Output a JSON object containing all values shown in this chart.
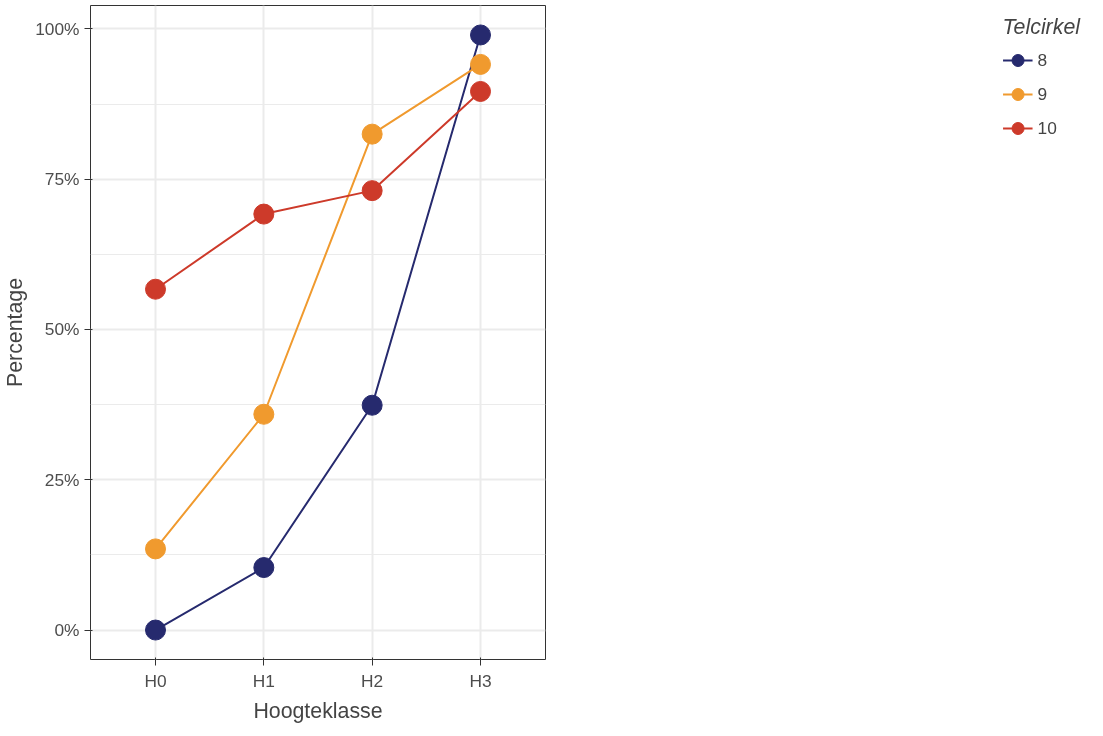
{
  "chart_data": {
    "type": "line",
    "xlabel": "Hoogteklasse",
    "ylabel": "Percentage",
    "legend_title": "Telcirkel",
    "categories": [
      "H0",
      "H1",
      "H2",
      "H3"
    ],
    "series": [
      {
        "name": "8",
        "color": "#262a6e",
        "values": [
          0,
          10.4,
          37.4,
          99
        ]
      },
      {
        "name": "9",
        "color": "#f09a2e",
        "values": [
          13.5,
          35.9,
          82.5,
          94.1
        ]
      },
      {
        "name": "10",
        "color": "#cd3a2a",
        "values": [
          56.7,
          69.2,
          73.1,
          89.6
        ]
      }
    ],
    "ylim": [
      -4.9,
      103.9
    ],
    "yticks": [
      {
        "value": 0,
        "label": "0%"
      },
      {
        "value": 25,
        "label": "25%"
      },
      {
        "value": 50,
        "label": "50%"
      },
      {
        "value": 75,
        "label": "75%"
      },
      {
        "value": 100,
        "label": "100%"
      }
    ],
    "grid": true,
    "legend": "right",
    "marker": "circle",
    "line_style": "solid"
  }
}
